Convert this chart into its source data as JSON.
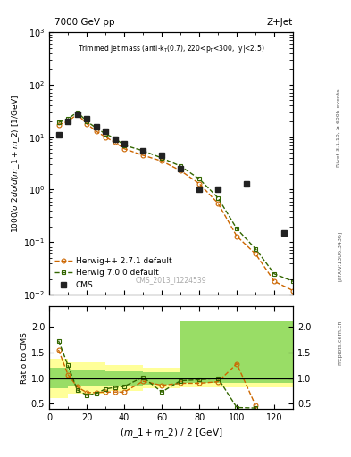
{
  "cms_x": [
    5,
    10,
    15,
    20,
    25,
    30,
    35,
    40,
    50,
    60,
    70,
    80,
    90,
    105,
    115,
    125
  ],
  "cms_y": [
    11.0,
    20.0,
    27.0,
    22.0,
    16.0,
    13.0,
    9.0,
    7.5,
    5.5,
    4.5,
    2.5,
    1.0,
    1.0,
    1.3,
    null,
    0.15
  ],
  "herwig1_x": [
    5,
    10,
    15,
    20,
    25,
    30,
    35,
    40,
    50,
    60,
    70,
    80,
    90,
    100,
    110,
    120,
    130
  ],
  "herwig1_y": [
    17.0,
    20.0,
    27.0,
    18.0,
    13.0,
    10.0,
    8.0,
    6.0,
    4.5,
    3.5,
    2.3,
    1.3,
    0.55,
    0.13,
    0.06,
    0.018,
    0.012
  ],
  "herwig2_x": [
    5,
    10,
    15,
    20,
    25,
    30,
    35,
    40,
    50,
    60,
    70,
    80,
    90,
    100,
    110,
    120,
    130
  ],
  "herwig2_y": [
    19.0,
    22.0,
    30.0,
    20.0,
    15.0,
    11.5,
    9.5,
    7.0,
    5.5,
    4.0,
    2.8,
    1.6,
    0.7,
    0.18,
    0.075,
    0.025,
    0.018
  ],
  "ratio1_x": [
    5,
    10,
    15,
    20,
    25,
    30,
    35,
    40,
    50,
    60,
    70,
    80,
    90,
    100,
    110
  ],
  "ratio1_y": [
    1.55,
    1.07,
    0.83,
    0.72,
    0.72,
    0.73,
    0.73,
    0.73,
    0.94,
    0.86,
    0.9,
    0.9,
    0.93,
    1.28,
    0.47
  ],
  "ratio2_x": [
    5,
    10,
    15,
    20,
    25,
    30,
    35,
    40,
    50,
    60,
    70,
    80,
    90,
    100,
    110
  ],
  "ratio2_y": [
    1.73,
    1.25,
    0.77,
    0.67,
    0.7,
    0.79,
    0.82,
    0.84,
    1.02,
    0.73,
    0.95,
    0.97,
    1.0,
    0.43,
    0.42
  ],
  "y_band_x": [
    0,
    10,
    30,
    50,
    70,
    90,
    130
  ],
  "y_band_lo": [
    0.62,
    0.7,
    0.75,
    0.8,
    0.82,
    0.82,
    0.82
  ],
  "y_band_hi": [
    1.38,
    1.3,
    1.25,
    1.2,
    2.1,
    2.1,
    2.1
  ],
  "g_band_x": [
    0,
    10,
    30,
    50,
    70,
    90,
    130
  ],
  "g_band_lo": [
    0.8,
    0.83,
    0.86,
    0.88,
    0.9,
    0.9,
    0.9
  ],
  "g_band_hi": [
    1.2,
    1.17,
    1.14,
    1.12,
    2.1,
    2.1,
    2.1
  ],
  "color_cms": "#222222",
  "color_herwig1": "#cc6600",
  "color_herwig2": "#336600",
  "color_yellow": "#ffff99",
  "color_green": "#99dd66",
  "xlim": [
    0,
    130
  ],
  "ylim_main": [
    0.01,
    1000
  ],
  "ylim_ratio": [
    0.4,
    2.4
  ],
  "ratio_yticks": [
    0.5,
    1.0,
    1.5,
    2.0
  ]
}
